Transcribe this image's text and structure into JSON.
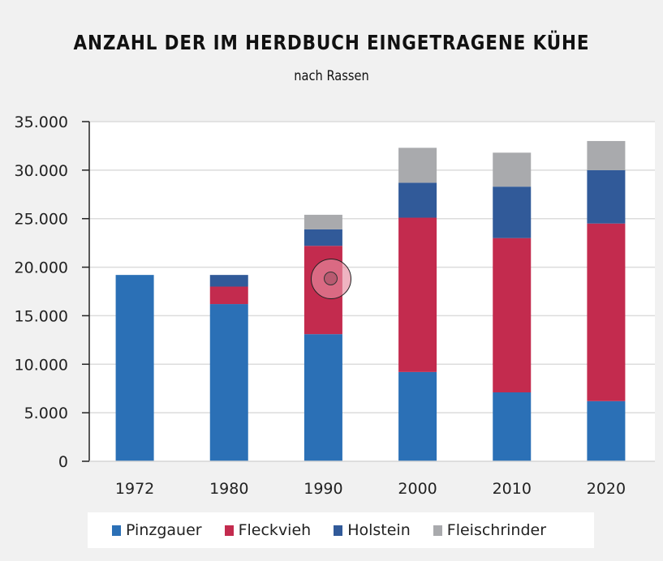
{
  "header": {
    "title": "ANZAHL DER IM HERDBUCH EINGETRAGENE KÜHE",
    "subtitle": "nach Rassen"
  },
  "legend": {
    "items": [
      {
        "label": "Pinzgauer",
        "color": "#2b70b6"
      },
      {
        "label": "Fleckvieh",
        "color": "#c32b4e"
      },
      {
        "label": "Holstein",
        "color": "#315a99"
      },
      {
        "label": "Fleischrinder",
        "color": "#a9aaad"
      }
    ]
  },
  "chart_data": {
    "type": "bar",
    "stacked": true,
    "title": "ANZAHL DER IM HERDBUCH EINGETRAGENE KÜHE",
    "subtitle": "nach Rassen",
    "xlabel": "",
    "ylabel": "",
    "categories": [
      "1972",
      "1980",
      "1990",
      "2000",
      "2010",
      "2020"
    ],
    "series": [
      {
        "name": "Pinzgauer",
        "color": "#2b70b6",
        "values": [
          19200,
          16200,
          13100,
          9200,
          7100,
          6200
        ]
      },
      {
        "name": "Fleckvieh",
        "color": "#c32b4e",
        "values": [
          0,
          1800,
          9100,
          15900,
          15900,
          18300
        ]
      },
      {
        "name": "Holstein",
        "color": "#315a99",
        "values": [
          0,
          1200,
          1700,
          3600,
          5300,
          5500
        ]
      },
      {
        "name": "Fleischrinder",
        "color": "#a9aaad",
        "values": [
          0,
          0,
          1500,
          3600,
          3500,
          3000
        ]
      }
    ],
    "ylim": [
      0,
      35000
    ],
    "yticks": [
      0,
      5000,
      10000,
      15000,
      20000,
      25000,
      30000,
      35000
    ],
    "ytick_labels": [
      "0",
      "5.000",
      "10.000",
      "15.000",
      "20.000",
      "25.000",
      "30.000",
      "35.000"
    ],
    "grid": true,
    "legend_position": "bottom"
  }
}
